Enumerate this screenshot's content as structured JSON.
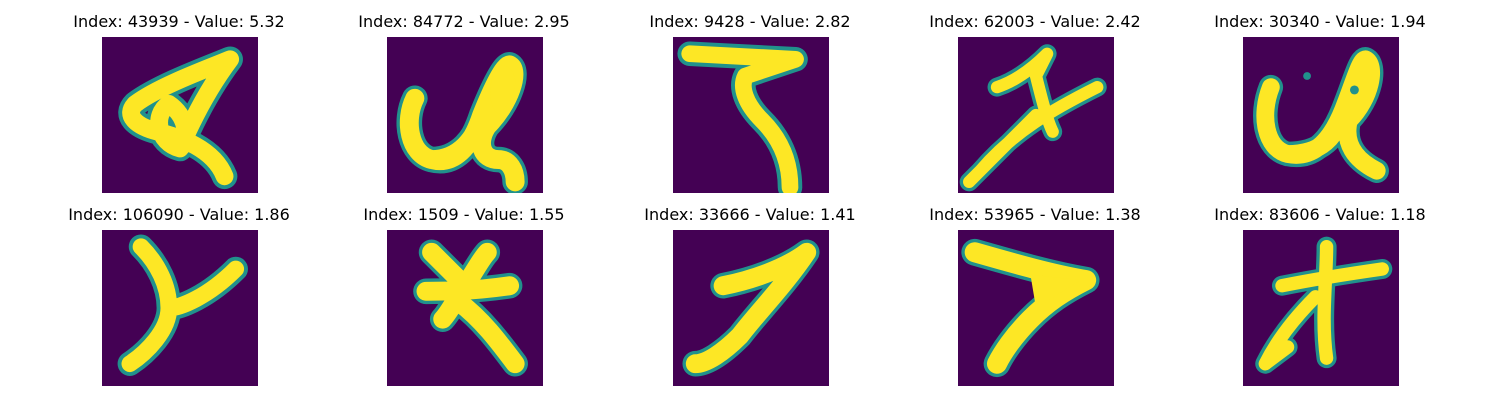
{
  "figure": {
    "panels": [
      {
        "label": "Index: 43939 - Value: 5.32",
        "glyph": "A"
      },
      {
        "label": "Index: 84772 - Value: 2.95",
        "glyph": "u"
      },
      {
        "label": "Index: 9428 - Value: 2.82",
        "glyph": "7"
      },
      {
        "label": "Index: 62003 - Value: 2.42",
        "glyph": "x"
      },
      {
        "label": "Index: 30340 - Value: 1.94",
        "glyph": "u"
      },
      {
        "label": "Index: 106090 - Value: 1.86",
        "glyph": "y"
      },
      {
        "label": "Index: 1509 - Value: 1.55",
        "glyph": "x"
      },
      {
        "label": "Index: 33666 - Value: 1.41",
        "glyph": "7"
      },
      {
        "label": "Index: 53965 - Value: 1.38",
        "glyph": "7"
      },
      {
        "label": "Index: 83606 - Value: 1.18",
        "glyph": "x"
      }
    ],
    "colors": {
      "background": "#440154",
      "stroke": "#fde725",
      "edge": "#21918c"
    }
  }
}
